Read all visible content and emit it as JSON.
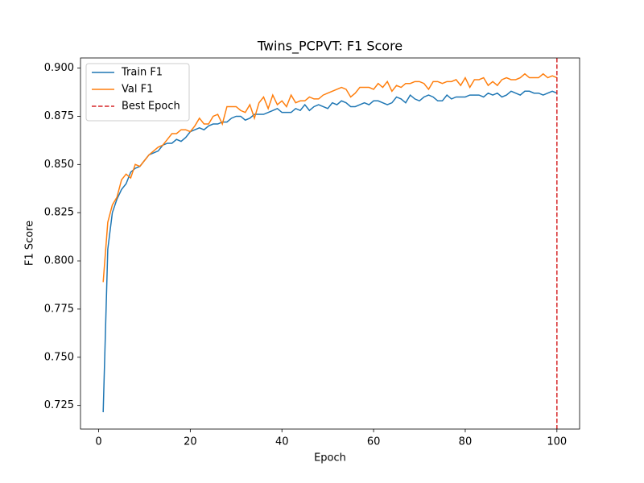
{
  "chart_data": {
    "type": "line",
    "title": "Twins_PCPVT: F1 Score",
    "x_label": "Epoch",
    "y_label": "F1 Score",
    "x": [
      1,
      2,
      3,
      4,
      5,
      6,
      7,
      8,
      9,
      10,
      11,
      12,
      13,
      14,
      15,
      16,
      17,
      18,
      19,
      20,
      21,
      22,
      23,
      24,
      25,
      26,
      27,
      28,
      29,
      30,
      31,
      32,
      33,
      34,
      35,
      36,
      37,
      38,
      39,
      40,
      41,
      42,
      43,
      44,
      45,
      46,
      47,
      48,
      49,
      50,
      51,
      52,
      53,
      54,
      55,
      56,
      57,
      58,
      59,
      60,
      61,
      62,
      63,
      64,
      65,
      66,
      67,
      68,
      69,
      70,
      71,
      72,
      73,
      74,
      75,
      76,
      77,
      78,
      79,
      80,
      81,
      82,
      83,
      84,
      85,
      86,
      87,
      88,
      89,
      90,
      91,
      92,
      93,
      94,
      95,
      96,
      97,
      98,
      99,
      100
    ],
    "series": [
      {
        "name": "Train F1",
        "color": "#1f77b4",
        "values": [
          0.7215,
          0.806,
          0.825,
          0.832,
          0.837,
          0.84,
          0.846,
          0.848,
          0.849,
          0.852,
          0.855,
          0.856,
          0.857,
          0.86,
          0.861,
          0.861,
          0.863,
          0.862,
          0.864,
          0.867,
          0.868,
          0.869,
          0.868,
          0.87,
          0.871,
          0.871,
          0.872,
          0.872,
          0.874,
          0.875,
          0.875,
          0.873,
          0.874,
          0.876,
          0.876,
          0.876,
          0.877,
          0.878,
          0.879,
          0.877,
          0.877,
          0.877,
          0.879,
          0.878,
          0.881,
          0.878,
          0.88,
          0.881,
          0.88,
          0.879,
          0.882,
          0.881,
          0.883,
          0.882,
          0.88,
          0.88,
          0.881,
          0.882,
          0.881,
          0.883,
          0.883,
          0.882,
          0.881,
          0.882,
          0.885,
          0.884,
          0.882,
          0.886,
          0.884,
          0.883,
          0.885,
          0.886,
          0.885,
          0.883,
          0.883,
          0.886,
          0.884,
          0.885,
          0.885,
          0.885,
          0.886,
          0.886,
          0.886,
          0.885,
          0.887,
          0.886,
          0.887,
          0.885,
          0.886,
          0.888,
          0.887,
          0.886,
          0.888,
          0.888,
          0.887,
          0.887,
          0.886,
          0.887,
          0.888,
          0.887
        ]
      },
      {
        "name": "Val F1",
        "color": "#ff7f0e",
        "values": [
          0.789,
          0.82,
          0.829,
          0.833,
          0.842,
          0.845,
          0.843,
          0.85,
          0.849,
          0.852,
          0.855,
          0.857,
          0.859,
          0.86,
          0.863,
          0.866,
          0.866,
          0.868,
          0.868,
          0.867,
          0.87,
          0.874,
          0.871,
          0.871,
          0.875,
          0.876,
          0.871,
          0.88,
          0.88,
          0.88,
          0.878,
          0.877,
          0.881,
          0.874,
          0.882,
          0.885,
          0.879,
          0.886,
          0.881,
          0.883,
          0.88,
          0.886,
          0.882,
          0.883,
          0.883,
          0.885,
          0.884,
          0.884,
          0.886,
          0.887,
          0.888,
          0.889,
          0.89,
          0.889,
          0.885,
          0.887,
          0.89,
          0.89,
          0.89,
          0.889,
          0.892,
          0.89,
          0.893,
          0.888,
          0.891,
          0.89,
          0.892,
          0.892,
          0.893,
          0.893,
          0.892,
          0.889,
          0.893,
          0.893,
          0.892,
          0.893,
          0.893,
          0.894,
          0.891,
          0.895,
          0.89,
          0.894,
          0.894,
          0.895,
          0.891,
          0.893,
          0.891,
          0.894,
          0.895,
          0.894,
          0.894,
          0.895,
          0.897,
          0.895,
          0.895,
          0.895,
          0.897,
          0.895,
          0.896,
          0.895
        ]
      }
    ],
    "best_epoch": {
      "name": "Best Epoch",
      "x": 100,
      "color": "#d62728"
    },
    "xlim": [
      -3.95,
      104.95
    ],
    "ylim": [
      0.71275,
      0.90525
    ],
    "xticks": [
      0,
      20,
      40,
      60,
      80,
      100
    ],
    "yticks": [
      0.725,
      {
        "value": 0.75,
        "label": "0.750"
      },
      0.775,
      {
        "value": 0.8,
        "label": "0.800"
      },
      0.825,
      {
        "value": 0.85,
        "label": "0.850"
      },
      0.875,
      {
        "value": 0.9,
        "label": "0.900"
      }
    ],
    "legend": "upper left",
    "grid": false
  }
}
